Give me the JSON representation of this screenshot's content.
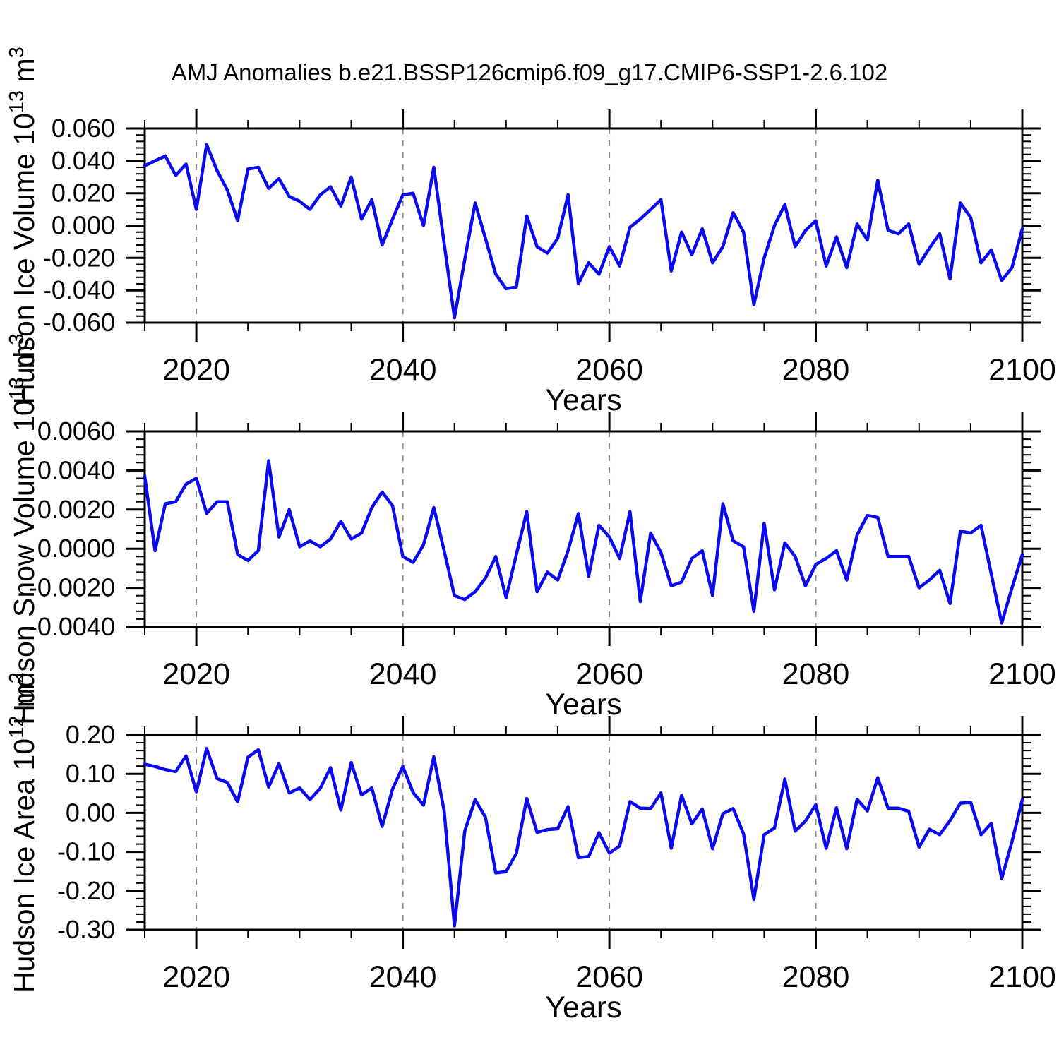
{
  "title": "AMJ Anomalies b.e21.BSSP126cmip6.f09_g17.CMIP6-SSP1-2.6.102",
  "colors": {
    "line": "#0a0aee",
    "grid": "#8a8a8a",
    "axis": "#000000",
    "text": "#000000"
  },
  "chart_data": {
    "type": "line",
    "xlabel": "Years",
    "x_start": 2015,
    "x_end": 2100,
    "x": [
      2015,
      2016,
      2017,
      2018,
      2019,
      2020,
      2021,
      2022,
      2023,
      2024,
      2025,
      2026,
      2027,
      2028,
      2029,
      2030,
      2031,
      2032,
      2033,
      2034,
      2035,
      2036,
      2037,
      2038,
      2039,
      2040,
      2041,
      2042,
      2043,
      2044,
      2045,
      2046,
      2047,
      2048,
      2049,
      2050,
      2051,
      2052,
      2053,
      2054,
      2055,
      2056,
      2057,
      2058,
      2059,
      2060,
      2061,
      2062,
      2063,
      2064,
      2065,
      2066,
      2067,
      2068,
      2069,
      2070,
      2071,
      2072,
      2073,
      2074,
      2075,
      2076,
      2077,
      2078,
      2079,
      2080,
      2081,
      2082,
      2083,
      2084,
      2085,
      2086,
      2087,
      2088,
      2089,
      2090,
      2091,
      2092,
      2093,
      2094,
      2095,
      2096,
      2097,
      2098,
      2099,
      2100
    ],
    "x_major_ticks": [
      2020,
      2040,
      2060,
      2080,
      2100
    ],
    "x_minor_step": 5,
    "grid_years": [
      2020,
      2040,
      2060,
      2080
    ],
    "legend": "none",
    "panels": [
      {
        "name": "hudson-ice-volume",
        "ylabel_parts": [
          "Hudson Ice Volume 10",
          "13",
          " m",
          "3"
        ],
        "ylim": [
          -0.06,
          0.06
        ],
        "ytick_step": 0.02,
        "yminor_step": 0.004,
        "ytick_decimals": 3,
        "values": [
          0.037,
          0.04,
          0.043,
          0.031,
          0.038,
          0.01,
          0.05,
          0.034,
          0.022,
          0.003,
          0.035,
          0.036,
          0.023,
          0.029,
          0.018,
          0.015,
          0.01,
          0.019,
          0.024,
          0.012,
          0.03,
          0.004,
          0.016,
          -0.012,
          0.004,
          0.019,
          0.02,
          0.0,
          0.036,
          -0.011,
          -0.057,
          -0.021,
          0.014,
          -0.008,
          -0.03,
          -0.039,
          -0.038,
          0.006,
          -0.013,
          -0.017,
          -0.008,
          0.019,
          -0.036,
          -0.023,
          -0.03,
          -0.013,
          -0.025,
          -0.001,
          0.004,
          0.01,
          0.016,
          -0.028,
          -0.004,
          -0.018,
          -0.002,
          -0.023,
          -0.013,
          0.008,
          -0.004,
          -0.049,
          -0.02,
          0.0,
          0.013,
          -0.013,
          -0.003,
          0.003,
          -0.025,
          -0.007,
          -0.026,
          0.001,
          -0.009,
          0.028,
          -0.003,
          -0.005,
          0.001,
          -0.024,
          -0.014,
          -0.005,
          -0.033,
          0.014,
          0.005,
          -0.023,
          -0.015,
          -0.034,
          -0.026,
          -0.002
        ]
      },
      {
        "name": "hudson-snow-volume",
        "ylabel_parts": [
          "Hudson Snow Volume 10",
          "13",
          " m",
          "3"
        ],
        "ylim": [
          -0.004,
          0.006
        ],
        "ytick_step": 0.002,
        "yminor_step": 0.0004,
        "ytick_decimals": 4,
        "values": [
          0.0037,
          -0.0001,
          0.0023,
          0.0024,
          0.0033,
          0.0036,
          0.0018,
          0.0024,
          0.0024,
          -0.0003,
          -0.0006,
          -0.0001,
          0.0045,
          0.0006,
          0.002,
          0.0001,
          0.0004,
          0.0001,
          0.0005,
          0.0014,
          0.0005,
          0.0008,
          0.0021,
          0.0029,
          0.0022,
          -0.0004,
          -0.0007,
          0.0002,
          0.0021,
          -0.0001,
          -0.0024,
          -0.0026,
          -0.0022,
          -0.0015,
          -0.0004,
          -0.0025,
          -0.0003,
          0.0019,
          -0.0022,
          -0.0012,
          -0.0016,
          -0.0001,
          0.0018,
          -0.0014,
          0.0012,
          0.0006,
          -0.0005,
          0.0019,
          -0.0027,
          0.0008,
          -0.0002,
          -0.0019,
          -0.0017,
          -0.0005,
          -0.0001,
          -0.0024,
          0.0023,
          0.0004,
          0.0001,
          -0.0032,
          0.0013,
          -0.0021,
          0.0003,
          -0.0004,
          -0.0019,
          -0.0008,
          -0.0005,
          -0.0001,
          -0.0016,
          0.0007,
          0.0017,
          0.0016,
          -0.0004,
          -0.0004,
          -0.0004,
          -0.002,
          -0.0016,
          -0.0011,
          -0.0028,
          0.0009,
          0.0008,
          0.0012,
          -0.0013,
          -0.0038,
          -0.002,
          -0.0003
        ]
      },
      {
        "name": "hudson-ice-area",
        "ylabel_parts": [
          "Hudson Ice Area 10",
          "12",
          " m",
          "2"
        ],
        "ylim": [
          -0.3,
          0.2
        ],
        "ytick_step": 0.1,
        "yminor_step": 0.02,
        "ytick_decimals": 2,
        "values": [
          0.125,
          0.119,
          0.111,
          0.106,
          0.146,
          0.054,
          0.165,
          0.088,
          0.078,
          0.028,
          0.143,
          0.162,
          0.066,
          0.126,
          0.051,
          0.064,
          0.034,
          0.063,
          0.116,
          0.007,
          0.129,
          0.046,
          0.064,
          -0.035,
          0.061,
          0.119,
          0.052,
          0.02,
          0.144,
          0.005,
          -0.29,
          -0.047,
          0.034,
          -0.011,
          -0.154,
          -0.151,
          -0.104,
          0.037,
          -0.05,
          -0.043,
          -0.041,
          0.016,
          -0.115,
          -0.112,
          -0.051,
          -0.103,
          -0.085,
          0.029,
          0.012,
          0.011,
          0.051,
          -0.091,
          0.045,
          -0.028,
          0.01,
          -0.092,
          -0.002,
          0.011,
          -0.054,
          -0.222,
          -0.056,
          -0.039,
          0.087,
          -0.047,
          -0.021,
          0.021,
          -0.091,
          0.013,
          -0.092,
          0.035,
          0.005,
          0.09,
          0.012,
          0.012,
          0.004,
          -0.088,
          -0.042,
          -0.056,
          -0.02,
          0.025,
          0.027,
          -0.056,
          -0.027,
          -0.169,
          -0.074,
          0.034
        ]
      }
    ]
  }
}
